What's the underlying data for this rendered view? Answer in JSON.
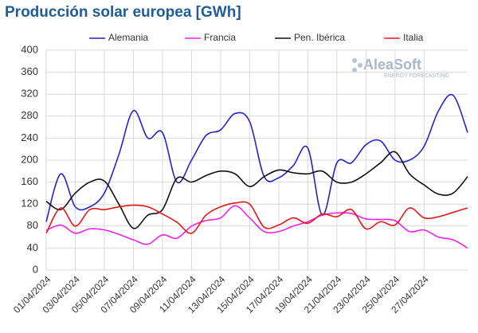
{
  "chart_data": {
    "type": "line",
    "title": "Producción solar europea [GWh]",
    "logo": {
      "name": "AleaSoft",
      "tagline": "ENERGY FORECASTING"
    },
    "categories": [
      "01/04/2024",
      null,
      "03/04/2024",
      null,
      "05/04/2024",
      null,
      "07/04/2024",
      null,
      "09/04/2024",
      null,
      "11/04/2024",
      null,
      "13/04/2024",
      null,
      "15/04/2024",
      null,
      "17/04/2024",
      null,
      "19/04/2024",
      null,
      "21/04/2024",
      null,
      "23/04/2024",
      null,
      "25/04/2024",
      null,
      "27/04/2024",
      null,
      null,
      null
    ],
    "series": [
      {
        "name": "Alemania",
        "color": "#2424c8",
        "values": [
          88,
          175,
          115,
          115,
          140,
          210,
          290,
          240,
          250,
          160,
          200,
          245,
          255,
          285,
          270,
          170,
          168,
          190,
          222,
          100,
          195,
          195,
          228,
          235,
          200,
          200,
          225,
          290,
          318,
          250
        ]
      },
      {
        "name": "Francia",
        "color": "#f020f0",
        "values": [
          72,
          82,
          67,
          75,
          73,
          65,
          55,
          47,
          64,
          58,
          80,
          90,
          95,
          117,
          95,
          70,
          70,
          80,
          88,
          100,
          104,
          103,
          93,
          92,
          90,
          70,
          73,
          60,
          55,
          40
        ]
      },
      {
        "name": "Pen. Ibérica",
        "color": "#111111",
        "values": [
          125,
          110,
          140,
          160,
          162,
          120,
          76,
          100,
          110,
          167,
          160,
          172,
          180,
          175,
          152,
          170,
          182,
          177,
          175,
          180,
          160,
          160,
          175,
          195,
          215,
          175,
          155,
          138,
          140,
          170
        ]
      },
      {
        "name": "Italia",
        "color": "#e81818",
        "values": [
          67,
          113,
          80,
          110,
          110,
          115,
          118,
          115,
          102,
          87,
          67,
          100,
          115,
          122,
          120,
          78,
          82,
          95,
          85,
          102,
          97,
          110,
          75,
          88,
          82,
          113,
          95,
          97,
          105,
          113
        ]
      }
    ],
    "ylim": [
      0,
      400
    ],
    "yticks": [
      0,
      40,
      80,
      120,
      160,
      200,
      240,
      280,
      320,
      360,
      400
    ],
    "grid": true,
    "legend": "top"
  }
}
